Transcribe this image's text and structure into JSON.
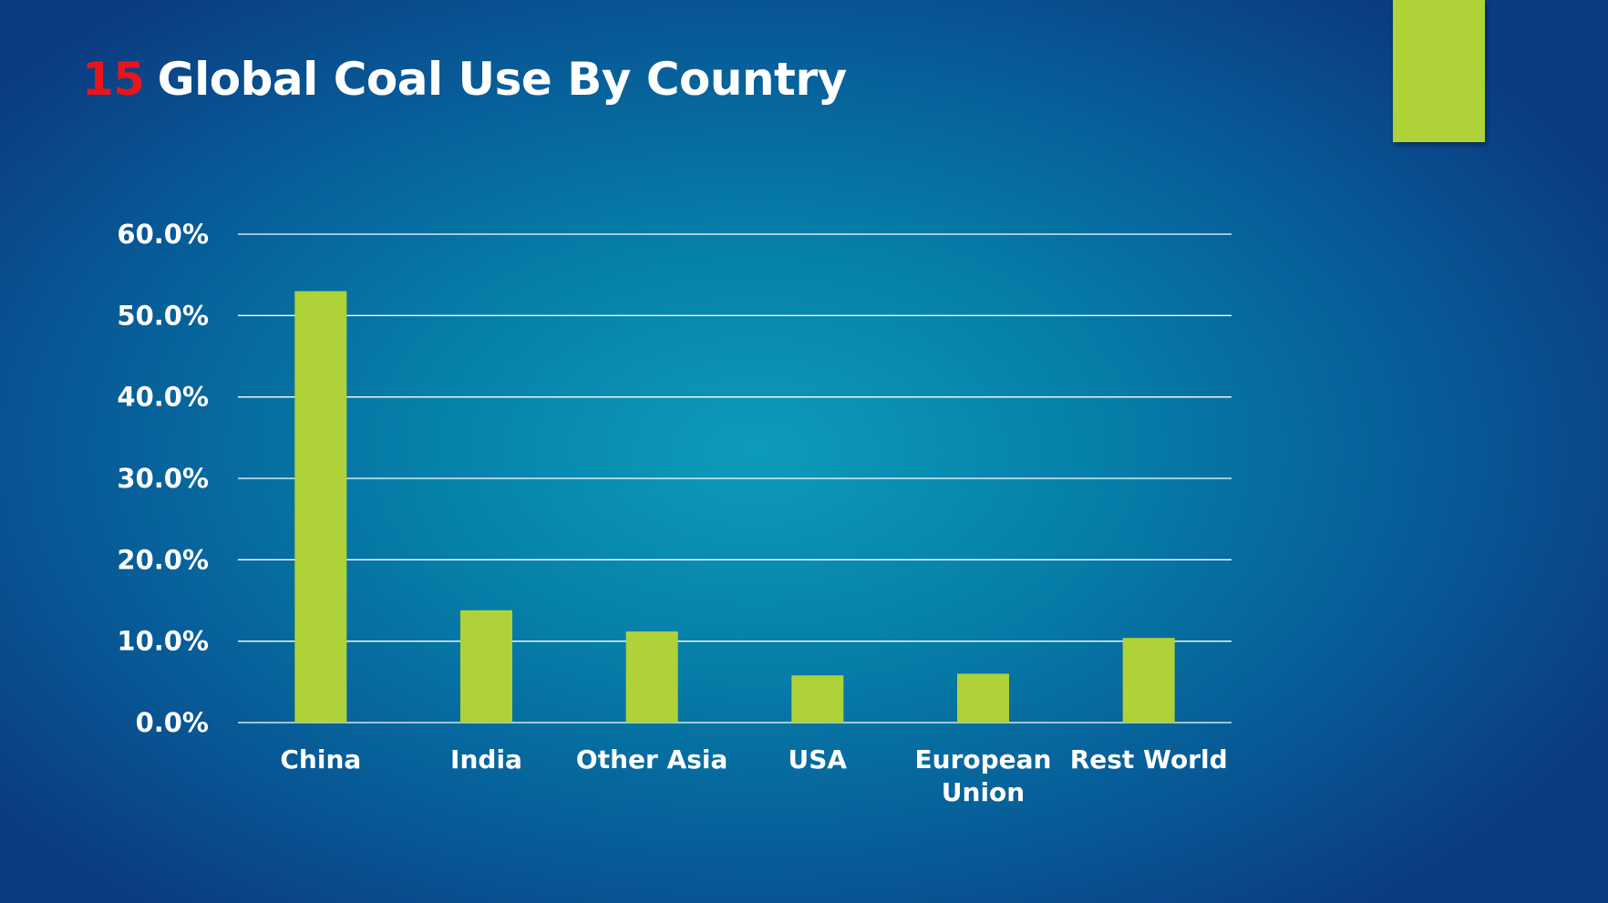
{
  "slide": {
    "number": "15",
    "title": "Global Coal Use By Country"
  },
  "colors": {
    "bar": "#aed237",
    "accent": "#aed237",
    "number": "#e8161b",
    "gridline": "#ffffff",
    "text": "#ffffff"
  },
  "chart_data": {
    "type": "bar",
    "categories": [
      "China",
      "India",
      "Other Asia",
      "USA",
      "European Union",
      "Rest World"
    ],
    "category_lines": [
      [
        "China"
      ],
      [
        "India"
      ],
      [
        "Other Asia"
      ],
      [
        "USA"
      ],
      [
        "European",
        "Union"
      ],
      [
        "Rest World"
      ]
    ],
    "values": [
      53.0,
      13.8,
      11.2,
      5.8,
      6.0,
      10.4
    ],
    "ylim": [
      0,
      60
    ],
    "yticks": [
      0,
      10,
      20,
      30,
      40,
      50,
      60
    ],
    "ytick_labels": [
      "0.0%",
      "10.0%",
      "20.0%",
      "30.0%",
      "40.0%",
      "50.0%",
      "60.0%"
    ],
    "grid": true,
    "legend": "none"
  }
}
